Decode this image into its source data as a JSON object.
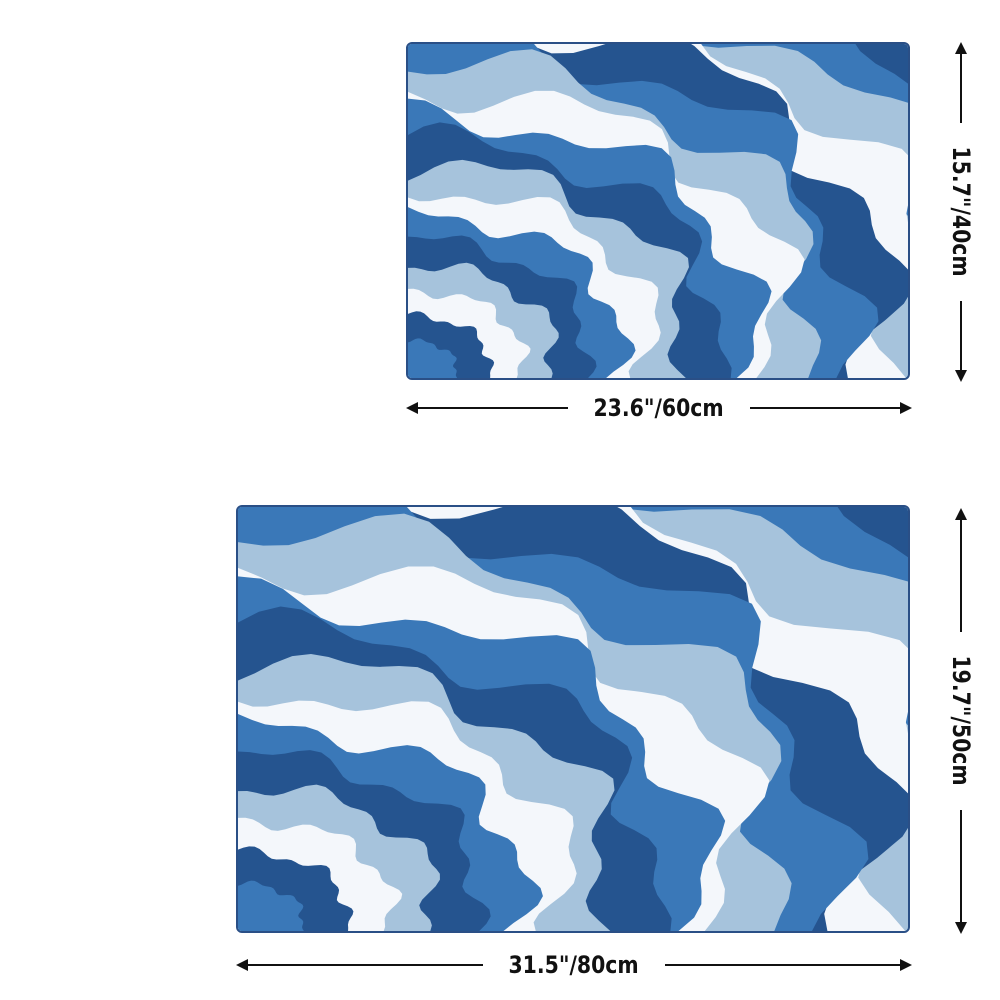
{
  "colors": {
    "dark": "#25548f",
    "medium": "#3a78b8",
    "light": "#a6c3dc",
    "white": "#f4f7fb",
    "border": "#2a4f86"
  },
  "small_rug": {
    "width_label": "23.6\"/60cm",
    "height_label": "15.7\"/40cm"
  },
  "large_rug": {
    "width_label": "31.5\"/80cm",
    "height_label": "19.7\"/50cm"
  }
}
